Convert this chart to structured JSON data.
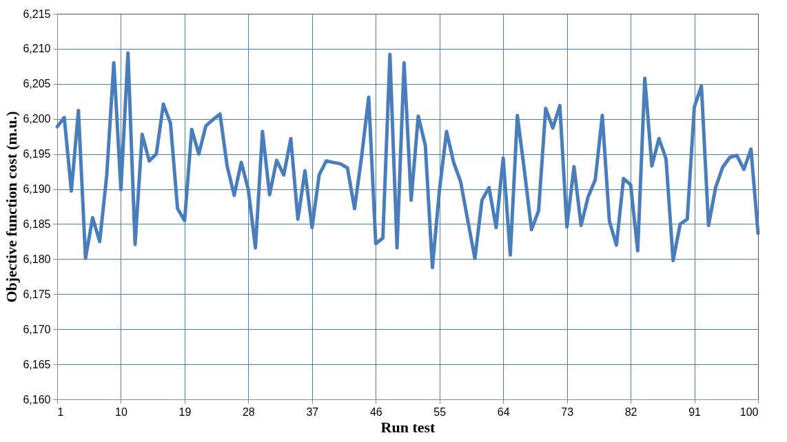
{
  "chart_data": {
    "type": "line",
    "xlabel": "Run test",
    "ylabel": "Objective function cost (m.u.)",
    "x": [
      1,
      2,
      3,
      4,
      5,
      6,
      7,
      8,
      9,
      10,
      11,
      12,
      13,
      14,
      15,
      16,
      17,
      18,
      19,
      20,
      21,
      22,
      23,
      24,
      25,
      26,
      27,
      28,
      29,
      30,
      31,
      32,
      33,
      34,
      35,
      36,
      37,
      38,
      39,
      40,
      41,
      42,
      43,
      44,
      45,
      46,
      47,
      48,
      49,
      50,
      51,
      52,
      53,
      54,
      55,
      56,
      57,
      58,
      59,
      60,
      61,
      62,
      63,
      64,
      65,
      66,
      67,
      68,
      69,
      70,
      71,
      72,
      73,
      74,
      75,
      76,
      77,
      78,
      79,
      80,
      81,
      82,
      83,
      84,
      85,
      86,
      87,
      88,
      89,
      90,
      91,
      92,
      93,
      94,
      95,
      96,
      97,
      98,
      99,
      100
    ],
    "series": [
      {
        "color": "#4a7ebb",
        "values": [
          6198.9,
          6200.2,
          6189.7,
          6201.2,
          6180.1,
          6185.9,
          6182.5,
          6192.0,
          6208.0,
          6189.9,
          6209.4,
          6182.1,
          6197.8,
          6194.0,
          6195.0,
          6202.1,
          6199.4,
          6187.2,
          6185.5,
          6198.5,
          6195.0,
          6199.0,
          6199.9,
          6200.7,
          6193.3,
          6189.1,
          6193.8,
          6189.9,
          6181.6,
          6198.2,
          6189.2,
          6194.1,
          6192.0,
          6197.2,
          6185.7,
          6192.6,
          6184.5,
          6192.0,
          6194.0,
          6193.8,
          6193.6,
          6193.0,
          6187.2,
          6194.6,
          6203.1,
          6182.2,
          6183.0,
          6209.2,
          6181.6,
          6208.0,
          6188.4,
          6200.4,
          6196.2,
          6178.8,
          6189.9,
          6198.2,
          6193.8,
          6191.0,
          6185.5,
          6180.1,
          6188.4,
          6190.2,
          6184.5,
          6194.4,
          6180.6,
          6200.5,
          6192.6,
          6184.2,
          6186.9,
          6201.5,
          6198.7,
          6201.9,
          6184.6,
          6193.2,
          6184.8,
          6188.9,
          6191.3,
          6200.5,
          6185.4,
          6182.0,
          6191.5,
          6190.6,
          6181.2,
          6205.8,
          6193.3,
          6197.2,
          6194.3,
          6179.8,
          6185.0,
          6185.7,
          6201.7,
          6204.7,
          6184.8,
          6190.2,
          6193.1,
          6194.5,
          6194.8,
          6192.8,
          6195.7,
          6183.7
        ]
      }
    ],
    "xlim": [
      1,
      100
    ],
    "xticks": [
      1,
      10,
      19,
      28,
      37,
      46,
      55,
      64,
      73,
      82,
      91,
      100
    ],
    "ylim": [
      6160,
      6215
    ],
    "yticks": [
      {
        "value": 6160,
        "label": "6,160"
      },
      {
        "value": 6165,
        "label": "6,165"
      },
      {
        "value": 6170,
        "label": "6,170"
      },
      {
        "value": 6175,
        "label": "6,175"
      },
      {
        "value": 6180,
        "label": "6,180"
      },
      {
        "value": 6185,
        "label": "6,185"
      },
      {
        "value": 6190,
        "label": "6,190"
      },
      {
        "value": 6195,
        "label": "6,195"
      },
      {
        "value": 6200,
        "label": "6,200"
      },
      {
        "value": 6205,
        "label": "6,205"
      },
      {
        "value": 6210,
        "label": "6,210"
      },
      {
        "value": 6215,
        "label": "6,215"
      }
    ],
    "grid": true,
    "legend": false,
    "marker": "none",
    "line_style": "solid"
  }
}
